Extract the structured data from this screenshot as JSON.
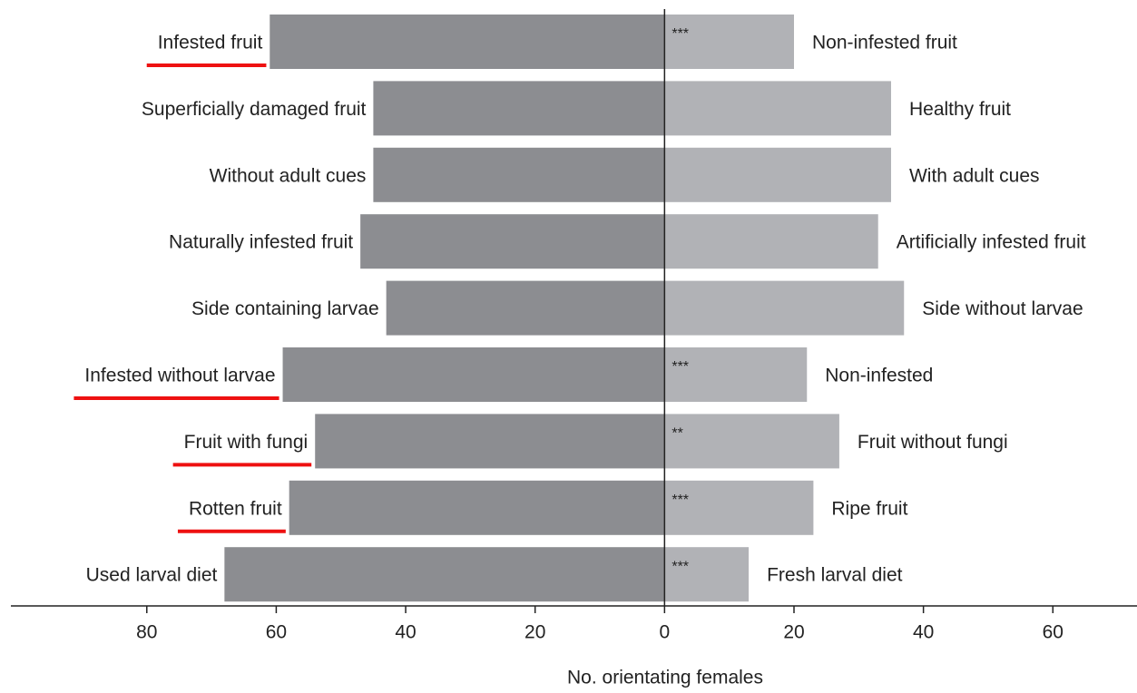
{
  "chart_data": {
    "type": "diverging-bar",
    "xlabel": "No. orientating females",
    "categories": [
      "Infested fruit",
      "Superficially damaged fruit",
      "Without adult cues",
      "Naturally infested fruit",
      "Side containing larvae",
      "Infested without larvae",
      "Fruit with fungi",
      "Rotten fruit",
      "Used larval diet"
    ],
    "categories_right": [
      "Non-infested fruit",
      "Healthy fruit",
      "With adult cues",
      "Artificially infested fruit",
      "Side without larvae",
      "Non-infested",
      "Fruit without fungi",
      "Ripe fruit",
      "Fresh larval diet"
    ],
    "series": [
      {
        "color": "#8c8d91",
        "values": [
          -61,
          -45,
          -45,
          -47,
          -43,
          -59,
          -54,
          -58,
          -68
        ]
      },
      {
        "color": "#b1b2b6",
        "values": [
          20,
          35,
          35,
          33,
          37,
          22,
          27,
          23,
          13
        ]
      }
    ],
    "significance": [
      "***",
      null,
      null,
      null,
      null,
      "***",
      "**",
      "***",
      "***"
    ],
    "highlighted": [
      true,
      false,
      false,
      false,
      false,
      true,
      true,
      true,
      false
    ],
    "highlight_color": "#ee1111",
    "xlim": [
      -101,
      73
    ],
    "xticks": [
      {
        "value": -80,
        "label": "80"
      },
      {
        "value": -60,
        "label": "60"
      },
      {
        "value": -40,
        "label": "40"
      },
      {
        "value": -20,
        "label": "20"
      },
      0,
      20,
      40,
      60
    ]
  }
}
